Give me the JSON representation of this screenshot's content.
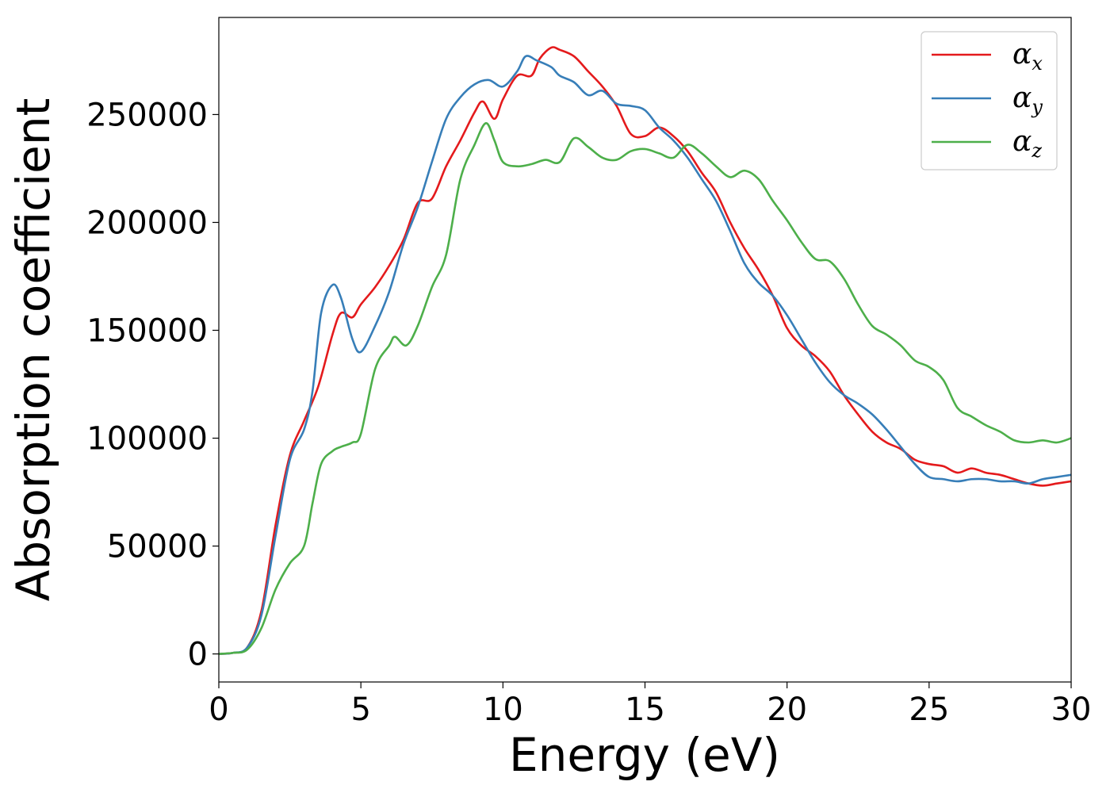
{
  "chart_data": {
    "type": "line",
    "title": "",
    "xlabel": "Energy (eV)",
    "ylabel": "Absorption coefficient",
    "xlim": [
      0,
      30
    ],
    "ylim": [
      -13000,
      295000
    ],
    "xticks": [
      0,
      5,
      10,
      15,
      20,
      25,
      30
    ],
    "yticks": [
      0,
      50000,
      100000,
      150000,
      200000,
      250000
    ],
    "grid": false,
    "legend_position": "top-right",
    "series": [
      {
        "name": "α",
        "subscript": "x",
        "color": "#e41a1c",
        "x": [
          0,
          0.5,
          1.0,
          1.5,
          2.0,
          2.5,
          3.0,
          3.5,
          4.0,
          4.3,
          4.7,
          5.0,
          5.5,
          6.0,
          6.5,
          7.0,
          7.5,
          8.0,
          8.5,
          9.0,
          9.3,
          9.7,
          10.0,
          10.5,
          11.0,
          11.3,
          11.7,
          12.0,
          12.5,
          13.0,
          13.5,
          14.0,
          14.5,
          15.0,
          15.5,
          16.0,
          16.5,
          17.0,
          17.5,
          18.0,
          18.5,
          19.0,
          19.5,
          20.0,
          20.5,
          21.0,
          21.5,
          22.0,
          22.5,
          23.0,
          23.5,
          24.0,
          24.5,
          25.0,
          25.5,
          26.0,
          26.5,
          27.0,
          27.5,
          28.0,
          28.5,
          29.0,
          29.5,
          30.0
        ],
        "y": [
          0,
          500,
          3000,
          20000,
          60000,
          92000,
          108000,
          124000,
          148000,
          158000,
          156000,
          162000,
          170000,
          180000,
          192000,
          209000,
          211000,
          226000,
          238000,
          251000,
          256000,
          248000,
          257000,
          268000,
          268000,
          276000,
          281000,
          280000,
          277000,
          270000,
          263000,
          254000,
          241000,
          240000,
          244000,
          240000,
          233000,
          223000,
          214000,
          200000,
          188000,
          178000,
          166000,
          151000,
          143000,
          138000,
          131000,
          120000,
          111000,
          103000,
          98000,
          95000,
          90000,
          88000,
          87000,
          84000,
          86000,
          84000,
          83000,
          81000,
          79000,
          78000,
          79000,
          80000
        ]
      },
      {
        "name": "α",
        "subscript": "y",
        "color": "#377eb8",
        "x": [
          0,
          0.5,
          1.0,
          1.5,
          2.0,
          2.5,
          3.0,
          3.3,
          3.6,
          4.0,
          4.3,
          4.7,
          5.0,
          5.5,
          6.0,
          6.5,
          7.0,
          7.5,
          8.0,
          8.5,
          9.0,
          9.5,
          10.0,
          10.5,
          10.8,
          11.2,
          11.7,
          12.0,
          12.5,
          13.0,
          13.5,
          14.0,
          14.5,
          15.0,
          15.5,
          16.0,
          16.5,
          17.0,
          17.5,
          18.0,
          18.5,
          19.0,
          19.5,
          20.0,
          20.5,
          21.0,
          21.5,
          22.0,
          22.5,
          23.0,
          23.5,
          24.0,
          24.5,
          25.0,
          25.5,
          26.0,
          26.5,
          27.0,
          27.5,
          28.0,
          28.5,
          29.0,
          29.5,
          30.0
        ],
        "y": [
          0,
          500,
          3000,
          18000,
          55000,
          90000,
          104000,
          122000,
          158000,
          171000,
          165000,
          146000,
          140000,
          152000,
          168000,
          190000,
          207000,
          228000,
          248000,
          258000,
          264000,
          266000,
          263000,
          270000,
          277000,
          275000,
          272000,
          268000,
          265000,
          259000,
          261000,
          255000,
          254000,
          252000,
          244000,
          238000,
          230000,
          220000,
          210000,
          196000,
          181000,
          172000,
          166000,
          157000,
          146000,
          135000,
          126000,
          120000,
          116000,
          111000,
          104000,
          96000,
          88000,
          82000,
          81000,
          80000,
          81000,
          81000,
          80000,
          80000,
          79000,
          81000,
          82000,
          83000
        ]
      },
      {
        "name": "α",
        "subscript": "z",
        "color": "#4daf4a",
        "x": [
          0,
          0.5,
          1.0,
          1.5,
          2.0,
          2.5,
          3.0,
          3.3,
          3.6,
          4.0,
          4.3,
          4.7,
          5.0,
          5.5,
          6.0,
          6.2,
          6.6,
          7.0,
          7.5,
          8.0,
          8.5,
          9.0,
          9.4,
          9.7,
          10.0,
          10.5,
          11.0,
          11.5,
          12.0,
          12.5,
          13.0,
          13.5,
          14.0,
          14.5,
          15.0,
          15.5,
          16.0,
          16.5,
          17.0,
          17.5,
          18.0,
          18.5,
          19.0,
          19.5,
          20.0,
          20.5,
          21.0,
          21.5,
          22.0,
          22.5,
          23.0,
          23.5,
          24.0,
          24.5,
          25.0,
          25.5,
          26.0,
          26.5,
          27.0,
          27.5,
          28.0,
          28.5,
          29.0,
          29.5,
          30.0
        ],
        "y": [
          0,
          500,
          2000,
          12000,
          30000,
          42000,
          50000,
          70000,
          88000,
          94000,
          96000,
          98000,
          102000,
          132000,
          143000,
          147000,
          143000,
          152000,
          170000,
          185000,
          220000,
          236000,
          246000,
          238000,
          228000,
          226000,
          227000,
          229000,
          228000,
          239000,
          235000,
          230000,
          229000,
          233000,
          234000,
          232000,
          230000,
          236000,
          232000,
          226000,
          221000,
          224000,
          220000,
          210000,
          201000,
          191000,
          183000,
          182000,
          174000,
          162000,
          152000,
          148000,
          143000,
          136000,
          133000,
          127000,
          114000,
          110000,
          106000,
          103000,
          99000,
          98000,
          99000,
          98000,
          100000
        ]
      }
    ]
  }
}
